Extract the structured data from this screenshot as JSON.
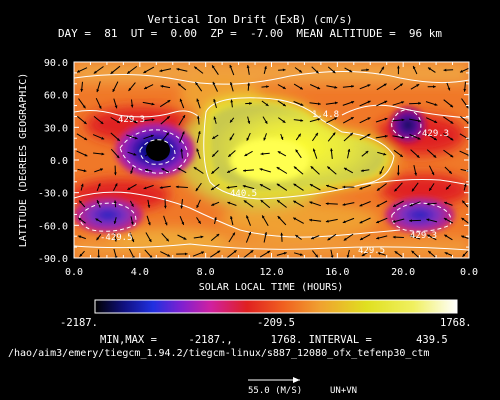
{
  "header": {
    "title": "Vertical Ion Drift (ExB) (cm/s)",
    "subtitle": "DAY =  81  UT =  0.00  ZP =  -7.00  MEAN ALTITUDE =  96 km"
  },
  "chart_data": {
    "type": "heatmap",
    "title": "Vertical Ion Drift (ExB) (cm/s)",
    "xlabel": "SOLAR LOCAL TIME (HOURS)",
    "ylabel": "LATITUDE (DEGREES GEOGRAPHIC)",
    "xlim": [
      0,
      24
    ],
    "ylim": [
      -90,
      90
    ],
    "x_ticks": [
      "0.0",
      "4.0",
      "8.0",
      "12.0",
      "16.0",
      "20.0",
      "0.0"
    ],
    "y_ticks": [
      "90.0",
      "60.0",
      "30.0",
      "0.0",
      "-30.0",
      "-60.0",
      "-90.0"
    ],
    "contour_labels": [
      "429.3",
      "429.3",
      "-429.5",
      "440.5",
      "1.4.8",
      "429.5",
      "429.3"
    ],
    "colorbar": {
      "min_label": "-2187.",
      "mid_label": "-209.5",
      "max_label": "1768.",
      "min": -2187,
      "max": 1768
    },
    "stats": {
      "min": -2187,
      "max": 1768,
      "interval": 439.5
    },
    "overlay": "UN+VN",
    "reference_vector": "55.0 (M/S)",
    "features": [
      {
        "type": "max",
        "x": 12,
        "y": 0,
        "value": 1768
      },
      {
        "type": "min",
        "x": 5,
        "y": 5,
        "value": -2187
      },
      {
        "type": "low",
        "x": 20,
        "y": 20,
        "value": -1100
      },
      {
        "type": "low",
        "x": 20,
        "y": -40,
        "value": -900
      },
      {
        "type": "low",
        "x": 2,
        "y": -35,
        "value": -900
      }
    ]
  },
  "footer": {
    "minmax_text": "MIN,MAX =     -2187.,      1768. INTERVAL =       439.5",
    "path_text": "/hao/aim3/emery/tiegcm_1.94.2/tiegcm-linux/s887_12080_ofx_tefenp30_ctm",
    "ref_label": "55.0 (M/S)",
    "wind_label": "UN+VN"
  }
}
